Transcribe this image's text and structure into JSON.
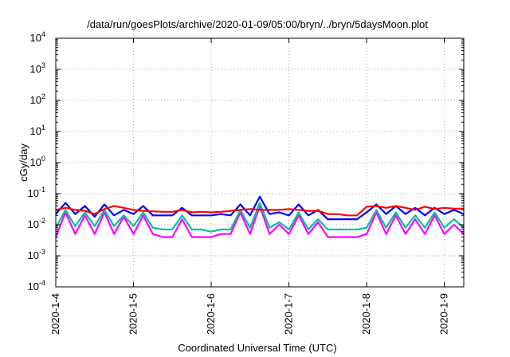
{
  "chart_data": {
    "type": "line",
    "title": "/data/run/goesPlots/archive/2020-01-09/05:00/bryn/../bryn/5daysMoon.plot",
    "xlabel": "Coordinated Universal Time (UTC)",
    "ylabel": "cGy/day",
    "y_scale": "log",
    "ylim": [
      0.0001,
      10000
    ],
    "xlim": [
      "2020-01-04",
      "2020-01-09T06:00"
    ],
    "grid": true,
    "legend": "none",
    "y_ticks": [
      {
        "base": "10",
        "exp": "-4"
      },
      {
        "base": "10",
        "exp": "-3"
      },
      {
        "base": "10",
        "exp": "-2"
      },
      {
        "base": "10",
        "exp": "-1"
      },
      {
        "base": "10",
        "exp": "0"
      },
      {
        "base": "10",
        "exp": "1"
      },
      {
        "base": "10",
        "exp": "2"
      },
      {
        "base": "10",
        "exp": "3"
      },
      {
        "base": "10",
        "exp": "4"
      }
    ],
    "x_ticks": [
      {
        "label": "2020-1-4",
        "value": "2020-01-04"
      },
      {
        "label": "2020-1-5",
        "value": "2020-01-05"
      },
      {
        "label": "2020-1-6",
        "value": "2020-01-06"
      },
      {
        "label": "2020-1-7",
        "value": "2020-01-07"
      },
      {
        "label": "2020-1-8",
        "value": "2020-01-08"
      },
      {
        "label": "2020-1-9",
        "value": "2020-01-09"
      }
    ],
    "series": [
      {
        "color": "#ff0000",
        "points": [
          [
            "2020-01-04T00:00",
            0.03
          ],
          [
            "2020-01-04T03:00",
            0.035
          ],
          [
            "2020-01-04T06:00",
            0.03
          ],
          [
            "2020-01-04T09:00",
            0.028
          ],
          [
            "2020-01-04T12:00",
            0.022
          ],
          [
            "2020-01-04T15:00",
            0.032
          ],
          [
            "2020-01-04T18:00",
            0.04
          ],
          [
            "2020-01-04T21:00",
            0.035
          ],
          [
            "2020-01-05T00:00",
            0.03
          ],
          [
            "2020-01-05T03:00",
            0.028
          ],
          [
            "2020-01-05T06:00",
            0.027
          ],
          [
            "2020-01-05T09:00",
            0.026
          ],
          [
            "2020-01-05T12:00",
            0.026
          ],
          [
            "2020-01-05T15:00",
            0.03
          ],
          [
            "2020-01-05T18:00",
            0.025
          ],
          [
            "2020-01-05T21:00",
            0.026
          ],
          [
            "2020-01-06T00:00",
            0.025
          ],
          [
            "2020-01-06T03:00",
            0.026
          ],
          [
            "2020-01-06T06:00",
            0.028
          ],
          [
            "2020-01-06T09:00",
            0.03
          ],
          [
            "2020-01-06T12:00",
            0.032
          ],
          [
            "2020-01-06T15:00",
            0.03
          ],
          [
            "2020-01-06T18:00",
            0.03
          ],
          [
            "2020-01-06T21:00",
            0.03
          ],
          [
            "2020-01-07T00:00",
            0.032
          ],
          [
            "2020-01-07T03:00",
            0.03
          ],
          [
            "2020-01-07T06:00",
            0.028
          ],
          [
            "2020-01-07T09:00",
            0.028
          ],
          [
            "2020-01-07T12:00",
            0.022
          ],
          [
            "2020-01-07T15:00",
            0.022
          ],
          [
            "2020-01-07T18:00",
            0.02
          ],
          [
            "2020-01-07T21:00",
            0.02
          ],
          [
            "2020-01-08T00:00",
            0.038
          ],
          [
            "2020-01-08T03:00",
            0.04
          ],
          [
            "2020-01-08T06:00",
            0.035
          ],
          [
            "2020-01-08T09:00",
            0.04
          ],
          [
            "2020-01-08T12:00",
            0.035
          ],
          [
            "2020-01-08T15:00",
            0.03
          ],
          [
            "2020-01-08T18:00",
            0.038
          ],
          [
            "2020-01-08T21:00",
            0.032
          ],
          [
            "2020-01-09T00:00",
            0.035
          ],
          [
            "2020-01-09T03:00",
            0.033
          ],
          [
            "2020-01-09T06:00",
            0.033
          ]
        ]
      },
      {
        "color": "#0000ff",
        "points": [
          [
            "2020-01-04T00:00",
            0.022
          ],
          [
            "2020-01-04T03:00",
            0.05
          ],
          [
            "2020-01-04T06:00",
            0.022
          ],
          [
            "2020-01-04T09:00",
            0.04
          ],
          [
            "2020-01-04T12:00",
            0.018
          ],
          [
            "2020-01-04T15:00",
            0.045
          ],
          [
            "2020-01-04T18:00",
            0.02
          ],
          [
            "2020-01-04T21:00",
            0.03
          ],
          [
            "2020-01-05T00:00",
            0.022
          ],
          [
            "2020-01-05T03:00",
            0.04
          ],
          [
            "2020-01-05T06:00",
            0.02
          ],
          [
            "2020-01-05T09:00",
            0.02
          ],
          [
            "2020-01-05T12:00",
            0.02
          ],
          [
            "2020-01-05T15:00",
            0.035
          ],
          [
            "2020-01-05T18:00",
            0.02
          ],
          [
            "2020-01-05T21:00",
            0.02
          ],
          [
            "2020-01-06T00:00",
            0.02
          ],
          [
            "2020-01-06T03:00",
            0.022
          ],
          [
            "2020-01-06T06:00",
            0.02
          ],
          [
            "2020-01-06T09:00",
            0.045
          ],
          [
            "2020-01-06T12:00",
            0.02
          ],
          [
            "2020-01-06T15:00",
            0.08
          ],
          [
            "2020-01-06T18:00",
            0.022
          ],
          [
            "2020-01-06T21:00",
            0.025
          ],
          [
            "2020-01-07T00:00",
            0.02
          ],
          [
            "2020-01-07T03:00",
            0.045
          ],
          [
            "2020-01-07T06:00",
            0.02
          ],
          [
            "2020-01-07T09:00",
            0.03
          ],
          [
            "2020-01-07T12:00",
            0.015
          ],
          [
            "2020-01-07T15:00",
            0.015
          ],
          [
            "2020-01-07T18:00",
            0.015
          ],
          [
            "2020-01-07T21:00",
            0.015
          ],
          [
            "2020-01-08T00:00",
            0.025
          ],
          [
            "2020-01-08T03:00",
            0.045
          ],
          [
            "2020-01-08T06:00",
            0.022
          ],
          [
            "2020-01-08T09:00",
            0.04
          ],
          [
            "2020-01-08T12:00",
            0.022
          ],
          [
            "2020-01-08T15:00",
            0.035
          ],
          [
            "2020-01-08T18:00",
            0.02
          ],
          [
            "2020-01-08T21:00",
            0.035
          ],
          [
            "2020-01-09T00:00",
            0.022
          ],
          [
            "2020-01-09T03:00",
            0.03
          ],
          [
            "2020-01-09T06:00",
            0.022
          ]
        ]
      },
      {
        "color": "#00c0a0",
        "points": [
          [
            "2020-01-04T00:00",
            0.008
          ],
          [
            "2020-01-04T03:00",
            0.03
          ],
          [
            "2020-01-04T06:00",
            0.009
          ],
          [
            "2020-01-04T09:00",
            0.025
          ],
          [
            "2020-01-04T12:00",
            0.009
          ],
          [
            "2020-01-04T15:00",
            0.03
          ],
          [
            "2020-01-04T18:00",
            0.009
          ],
          [
            "2020-01-04T21:00",
            0.02
          ],
          [
            "2020-01-05T00:00",
            0.009
          ],
          [
            "2020-01-05T03:00",
            0.025
          ],
          [
            "2020-01-05T06:00",
            0.008
          ],
          [
            "2020-01-05T09:00",
            0.007
          ],
          [
            "2020-01-05T12:00",
            0.007
          ],
          [
            "2020-01-05T15:00",
            0.02
          ],
          [
            "2020-01-05T18:00",
            0.007
          ],
          [
            "2020-01-05T21:00",
            0.007
          ],
          [
            "2020-01-06T00:00",
            0.006
          ],
          [
            "2020-01-06T03:00",
            0.007
          ],
          [
            "2020-01-06T06:00",
            0.007
          ],
          [
            "2020-01-06T09:00",
            0.03
          ],
          [
            "2020-01-06T12:00",
            0.008
          ],
          [
            "2020-01-06T15:00",
            0.05
          ],
          [
            "2020-01-06T18:00",
            0.008
          ],
          [
            "2020-01-06T21:00",
            0.012
          ],
          [
            "2020-01-07T00:00",
            0.007
          ],
          [
            "2020-01-07T03:00",
            0.025
          ],
          [
            "2020-01-07T06:00",
            0.007
          ],
          [
            "2020-01-07T09:00",
            0.015
          ],
          [
            "2020-01-07T12:00",
            0.007
          ],
          [
            "2020-01-07T15:00",
            0.007
          ],
          [
            "2020-01-07T18:00",
            0.007
          ],
          [
            "2020-01-07T21:00",
            0.007
          ],
          [
            "2020-01-08T00:00",
            0.008
          ],
          [
            "2020-01-08T03:00",
            0.03
          ],
          [
            "2020-01-08T06:00",
            0.008
          ],
          [
            "2020-01-08T09:00",
            0.025
          ],
          [
            "2020-01-08T12:00",
            0.008
          ],
          [
            "2020-01-08T15:00",
            0.02
          ],
          [
            "2020-01-08T18:00",
            0.008
          ],
          [
            "2020-01-08T21:00",
            0.025
          ],
          [
            "2020-01-09T00:00",
            0.008
          ],
          [
            "2020-01-09T03:00",
            0.015
          ],
          [
            "2020-01-09T06:00",
            0.008
          ]
        ]
      },
      {
        "color": "#ff00ff",
        "points": [
          [
            "2020-01-04T00:00",
            0.004
          ],
          [
            "2020-01-04T03:00",
            0.025
          ],
          [
            "2020-01-04T06:00",
            0.005
          ],
          [
            "2020-01-04T09:00",
            0.02
          ],
          [
            "2020-01-04T12:00",
            0.005
          ],
          [
            "2020-01-04T15:00",
            0.025
          ],
          [
            "2020-01-04T18:00",
            0.005
          ],
          [
            "2020-01-04T21:00",
            0.018
          ],
          [
            "2020-01-05T00:00",
            0.005
          ],
          [
            "2020-01-05T03:00",
            0.02
          ],
          [
            "2020-01-05T06:00",
            0.005
          ],
          [
            "2020-01-05T09:00",
            0.004
          ],
          [
            "2020-01-05T12:00",
            0.004
          ],
          [
            "2020-01-05T15:00",
            0.015
          ],
          [
            "2020-01-05T18:00",
            0.004
          ],
          [
            "2020-01-05T21:00",
            0.004
          ],
          [
            "2020-01-06T00:00",
            0.004
          ],
          [
            "2020-01-06T03:00",
            0.005
          ],
          [
            "2020-01-06T06:00",
            0.005
          ],
          [
            "2020-01-06T09:00",
            0.025
          ],
          [
            "2020-01-06T12:00",
            0.005
          ],
          [
            "2020-01-06T15:00",
            0.04
          ],
          [
            "2020-01-06T18:00",
            0.005
          ],
          [
            "2020-01-06T21:00",
            0.01
          ],
          [
            "2020-01-07T00:00",
            0.005
          ],
          [
            "2020-01-07T03:00",
            0.02
          ],
          [
            "2020-01-07T06:00",
            0.005
          ],
          [
            "2020-01-07T09:00",
            0.012
          ],
          [
            "2020-01-07T12:00",
            0.004
          ],
          [
            "2020-01-07T15:00",
            0.004
          ],
          [
            "2020-01-07T18:00",
            0.004
          ],
          [
            "2020-01-07T21:00",
            0.004
          ],
          [
            "2020-01-08T00:00",
            0.005
          ],
          [
            "2020-01-08T03:00",
            0.025
          ],
          [
            "2020-01-08T06:00",
            0.005
          ],
          [
            "2020-01-08T09:00",
            0.02
          ],
          [
            "2020-01-08T12:00",
            0.005
          ],
          [
            "2020-01-08T15:00",
            0.015
          ],
          [
            "2020-01-08T18:00",
            0.005
          ],
          [
            "2020-01-08T21:00",
            0.02
          ],
          [
            "2020-01-09T00:00",
            0.005
          ],
          [
            "2020-01-09T03:00",
            0.01
          ],
          [
            "2020-01-09T06:00",
            0.005
          ]
        ]
      }
    ]
  }
}
